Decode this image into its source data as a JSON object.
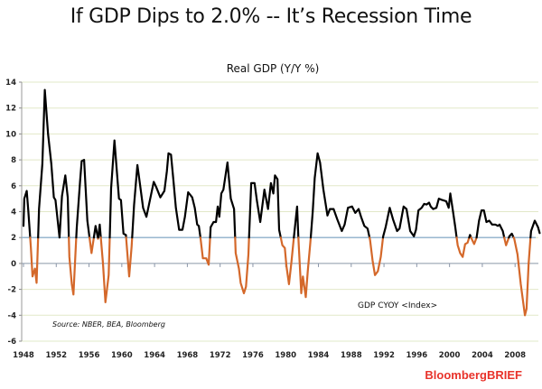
{
  "header": {
    "title": "If GDP Dips to 2.0% -- It’s Recession Time"
  },
  "brand": "BloombergBRIEF",
  "chart_data": {
    "type": "line",
    "title": "Real GDP (Y/Y %)",
    "xlabel": "",
    "ylabel": "",
    "ylim": [
      -6,
      14
    ],
    "xlim": [
      1948,
      2011
    ],
    "yticks": [
      14,
      12,
      10,
      8,
      6,
      4,
      2,
      0,
      -2,
      -4,
      -6
    ],
    "xticks": [
      "1948",
      "1952",
      "1956",
      "1960",
      "1964",
      "1968",
      "1972",
      "1976",
      "1980",
      "1984",
      "1988",
      "1992",
      "1996",
      "2000",
      "2004",
      "2008"
    ],
    "grid": true,
    "reference_line": {
      "value": 2.0,
      "color": "#8fb0cc"
    },
    "source_note": "Source: NBER, BEA, Bloomberg",
    "series": [
      {
        "name": "GDP CYOY <Index>",
        "color_above": "#000000",
        "color_below": "#d4682a",
        "threshold": 2.0,
        "x": [
          1948.0,
          1948.1,
          1948.4,
          1948.6,
          1948.9,
          1949.1,
          1949.4,
          1949.6,
          1949.9,
          1950.3,
          1950.6,
          1951.0,
          1951.4,
          1951.7,
          1951.9,
          1952.4,
          1952.7,
          1953.1,
          1953.4,
          1953.6,
          1953.9,
          1954.1,
          1954.5,
          1954.9,
          1955.1,
          1955.4,
          1955.8,
          1956.3,
          1956.8,
          1957.1,
          1957.3,
          1957.7,
          1958.0,
          1958.4,
          1958.7,
          1959.1,
          1959.65,
          1959.9,
          1960.2,
          1960.5,
          1960.9,
          1961.2,
          1961.5,
          1961.9,
          1962.2,
          1962.6,
          1963.0,
          1963.3,
          1963.9,
          1964.2,
          1964.7,
          1965.2,
          1965.5,
          1965.7,
          1966.0,
          1966.3,
          1966.6,
          1967.0,
          1967.4,
          1967.7,
          1968.1,
          1968.6,
          1968.9,
          1969.2,
          1969.4,
          1969.6,
          1969.9,
          1970.3,
          1970.6,
          1970.85,
          1971.2,
          1971.5,
          1971.7,
          1971.9,
          1972.15,
          1972.4,
          1972.9,
          1973.3,
          1973.7,
          1973.9,
          1974.3,
          1974.5,
          1974.9,
          1975.15,
          1975.45,
          1975.8,
          1976.2,
          1976.5,
          1976.9,
          1977.4,
          1977.85,
          1978.2,
          1978.5,
          1978.7,
          1979.0,
          1979.2,
          1979.6,
          1979.9,
          1980.1,
          1980.4,
          1980.7,
          1981.0,
          1981.4,
          1981.6,
          1981.9,
          1982.1,
          1982.45,
          1982.7,
          1983.0,
          1983.3,
          1983.55,
          1983.9,
          1984.2,
          1984.6,
          1985.1,
          1985.4,
          1985.85,
          1986.3,
          1986.85,
          1987.2,
          1987.6,
          1988.1,
          1988.5,
          1988.9,
          1989.2,
          1989.6,
          1990.0,
          1990.3,
          1990.6,
          1990.9,
          1991.25,
          1991.6,
          1991.9,
          1992.2,
          1992.7,
          1993.1,
          1993.6,
          1993.9,
          1994.4,
          1994.75,
          1995.2,
          1995.65,
          1995.9,
          1996.2,
          1996.6,
          1996.9,
          1997.2,
          1997.5,
          1997.7,
          1998.0,
          1998.4,
          1998.7,
          1999.1,
          1999.6,
          1999.9,
          2000.1,
          2000.4,
          2000.7,
          2001.0,
          2001.3,
          2001.6,
          2001.9,
          2002.2,
          2002.5,
          2002.7,
          2003.0,
          2003.3,
          2003.6,
          2003.9,
          2004.2,
          2004.5,
          2004.85,
          2005.2,
          2005.6,
          2005.9,
          2006.1,
          2006.5,
          2006.9,
          2007.3,
          2007.6,
          2007.9,
          2008.3,
          2008.7,
          2009.2,
          2009.4,
          2009.65,
          2009.95,
          2010.4,
          2010.8,
          2011.0
        ],
        "y": [
          2.9,
          5.0,
          5.6,
          4.0,
          1.2,
          -1.0,
          -0.4,
          -1.5,
          4.2,
          7.7,
          13.4,
          10.0,
          7.7,
          5.1,
          4.9,
          2.0,
          5.2,
          6.8,
          5.1,
          0.5,
          -1.6,
          -2.4,
          2.8,
          6.3,
          7.9,
          8.0,
          3.3,
          0.8,
          2.9,
          1.9,
          3.0,
          0.0,
          -3.0,
          -0.9,
          5.8,
          9.5,
          5.0,
          4.9,
          2.3,
          2.2,
          -1.0,
          1.3,
          4.5,
          7.6,
          6.2,
          4.3,
          3.6,
          4.5,
          6.3,
          5.9,
          5.1,
          5.6,
          7.1,
          8.5,
          8.4,
          6.4,
          4.3,
          2.6,
          2.6,
          3.6,
          5.5,
          5.1,
          4.3,
          3.0,
          2.9,
          2.0,
          0.4,
          0.4,
          -0.1,
          2.8,
          3.2,
          3.2,
          4.4,
          3.6,
          5.4,
          5.7,
          7.8,
          5.0,
          4.2,
          0.8,
          -0.4,
          -1.5,
          -2.3,
          -1.8,
          0.7,
          6.2,
          6.2,
          4.8,
          3.2,
          5.7,
          4.2,
          6.2,
          5.4,
          6.8,
          6.5,
          2.6,
          1.4,
          1.2,
          -0.2,
          -1.6,
          0.1,
          2.0,
          4.4,
          1.3,
          -2.3,
          -1.0,
          -2.6,
          -0.6,
          1.5,
          4.0,
          6.6,
          8.5,
          7.8,
          5.7,
          3.7,
          4.2,
          4.2,
          3.4,
          2.5,
          3.0,
          4.3,
          4.4,
          3.9,
          4.2,
          3.6,
          2.9,
          2.7,
          1.8,
          0.25,
          -0.9,
          -0.6,
          0.5,
          2.1,
          2.8,
          4.3,
          3.4,
          2.5,
          2.7,
          4.4,
          4.2,
          2.5,
          2.1,
          2.6,
          4.1,
          4.3,
          4.6,
          4.55,
          4.7,
          4.4,
          4.2,
          4.3,
          5.0,
          4.9,
          4.8,
          4.3,
          5.4,
          4.1,
          2.8,
          1.4,
          0.8,
          0.5,
          1.5,
          1.6,
          2.2,
          1.9,
          1.5,
          2.0,
          3.3,
          4.1,
          4.1,
          3.2,
          3.3,
          3.0,
          3.0,
          2.9,
          3.0,
          2.5,
          1.4,
          2.1,
          2.3,
          1.9,
          0.7,
          -1.6,
          -4.0,
          -3.5,
          0.0,
          2.5,
          3.3,
          2.8,
          2.35
        ]
      }
    ],
    "legend": {
      "label": "GDP CYOY <Index>",
      "placement": "bottom-right inside plot"
    }
  }
}
